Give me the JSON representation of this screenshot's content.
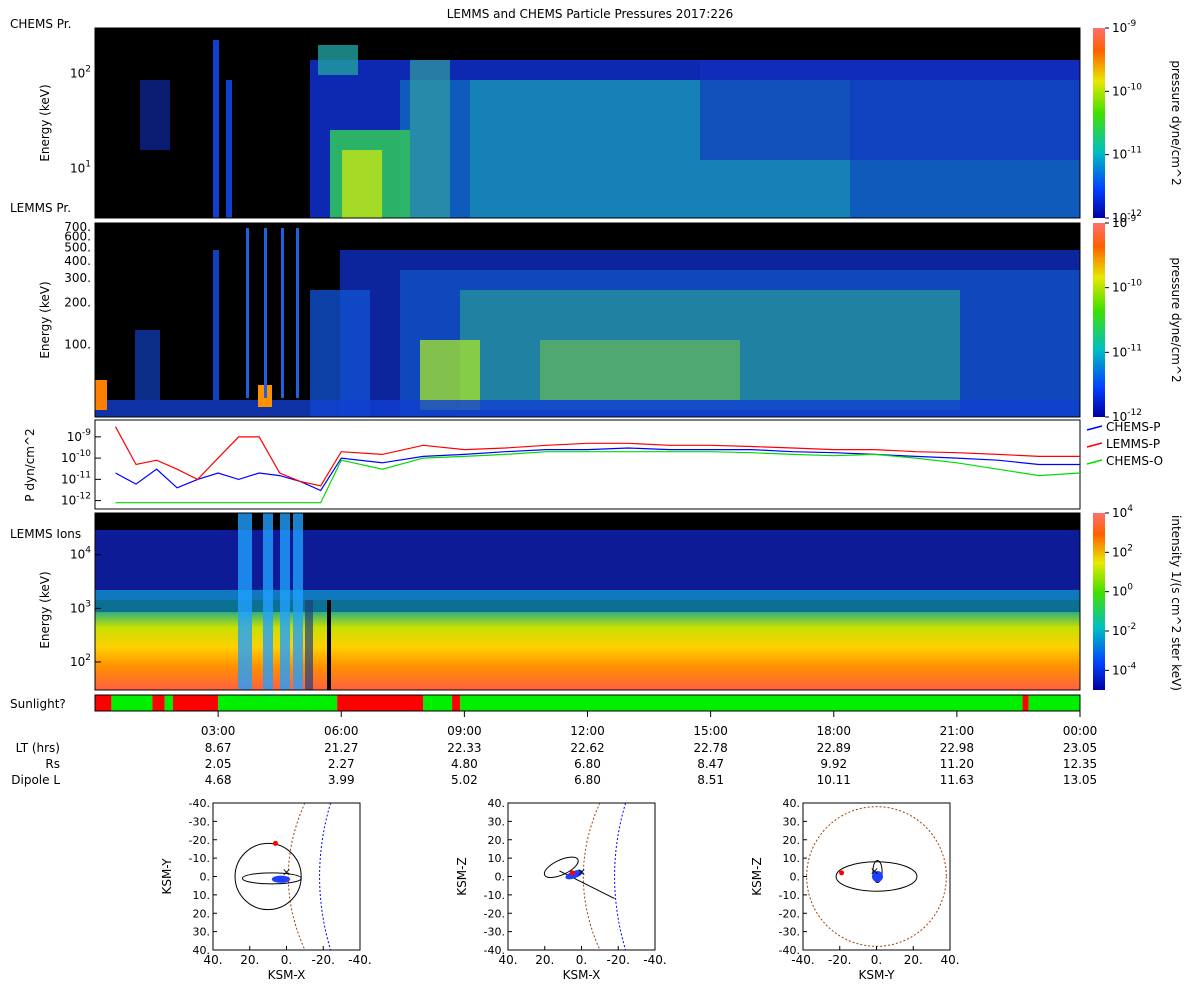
{
  "title": "LEMMS and CHEMS Particle Pressures  2017:226",
  "chart_data": [
    {
      "type": "heatmap",
      "panel": "chems",
      "corner_label": "CHEMS Pr.",
      "ylabel": "Energy (keV)",
      "yscale": "log",
      "ylim": [
        3,
        300
      ],
      "yticks": [
        {
          "v": 10,
          "label": "10",
          "exp": "1"
        },
        {
          "v": 100,
          "label": "10",
          "exp": "2"
        }
      ],
      "colorbar": {
        "label": "pressure dyne/cm^2",
        "scale": "log",
        "range": [
          1e-12,
          1e-09
        ],
        "ticks": [
          {
            "label": "10",
            "exp": "-9"
          },
          {
            "label": "10",
            "exp": "-10"
          },
          {
            "label": "10",
            "exp": "-11"
          },
          {
            "label": "10",
            "exp": "-12"
          }
        ]
      }
    },
    {
      "type": "heatmap",
      "panel": "lemms_pressure",
      "corner_label": "LEMMS Pr.",
      "ylabel": "Energy (keV)",
      "yscale": "log",
      "ylim": [
        30,
        750
      ],
      "yticks": [
        {
          "v": 100,
          "label": "100."
        },
        {
          "v": 200,
          "label": "200."
        },
        {
          "v": 300,
          "label": "300."
        },
        {
          "v": 400,
          "label": "400."
        },
        {
          "v": 500,
          "label": "500."
        },
        {
          "v": 600,
          "label": "600."
        },
        {
          "v": 700,
          "label": "700."
        }
      ],
      "colorbar": {
        "label": "pressure dyne/cm^2",
        "scale": "log",
        "range": [
          1e-12,
          1e-09
        ],
        "ticks": [
          {
            "label": "10",
            "exp": "-9"
          },
          {
            "label": "10",
            "exp": "-10"
          },
          {
            "label": "10",
            "exp": "-11"
          },
          {
            "label": "10",
            "exp": "-12"
          }
        ]
      }
    },
    {
      "type": "line",
      "panel": "pressures",
      "ylabel": "P dyn/cm^2",
      "yscale": "log",
      "ylim": [
        5e-13,
        5e-09
      ],
      "yticks": [
        {
          "label": "10",
          "exp": "-9"
        },
        {
          "label": "10",
          "exp": "-10"
        },
        {
          "label": "10",
          "exp": "-11"
        },
        {
          "label": "10",
          "exp": "-12"
        }
      ],
      "x": [
        0.5,
        1,
        1.5,
        2,
        2.5,
        3,
        3.5,
        4,
        4.5,
        5,
        5.5,
        6,
        7,
        8,
        9,
        10,
        11,
        12,
        13,
        14,
        15,
        16,
        17,
        18,
        19,
        20,
        21,
        22,
        23,
        24
      ],
      "series": [
        {
          "name": "CHEMS-P",
          "color": "#0000ff",
          "values": [
            2e-11,
            6e-12,
            3e-11,
            4e-12,
            1e-11,
            2e-11,
            1e-11,
            2e-11,
            1.5e-11,
            8e-12,
            3e-12,
            1e-10,
            6e-11,
            1.2e-10,
            1.5e-10,
            2e-10,
            2.5e-10,
            2.5e-10,
            3e-10,
            2.5e-10,
            2.5e-10,
            2.5e-10,
            2e-10,
            1.8e-10,
            1.5e-10,
            1.2e-10,
            1e-10,
            8e-11,
            5e-11,
            5e-11
          ]
        },
        {
          "name": "LEMMS-P",
          "color": "#ff0000",
          "values": [
            3e-09,
            5e-11,
            8e-11,
            3e-11,
            1e-11,
            1e-10,
            1e-09,
            1e-09,
            2e-11,
            8e-12,
            5e-12,
            2e-10,
            1.5e-10,
            4e-10,
            2.5e-10,
            3e-10,
            4e-10,
            5e-10,
            5e-10,
            4e-10,
            4e-10,
            3.5e-10,
            3e-10,
            2.5e-10,
            2.5e-10,
            2e-10,
            1.8e-10,
            1.5e-10,
            1.2e-10,
            1.2e-10
          ]
        },
        {
          "name": "CHEMS-O",
          "color": "#00dd00",
          "values": [
            8e-13,
            8e-13,
            8e-13,
            8e-13,
            8e-13,
            8e-13,
            8e-13,
            8e-13,
            8e-13,
            8e-13,
            8e-13,
            8e-11,
            3e-11,
            1e-10,
            1.2e-10,
            1.5e-10,
            2e-10,
            2e-10,
            2e-10,
            2e-10,
            2e-10,
            1.8e-10,
            1.5e-10,
            1.3e-10,
            1.5e-10,
            1e-10,
            6e-11,
            3e-11,
            1.5e-11,
            2e-11
          ]
        }
      ]
    },
    {
      "type": "heatmap",
      "panel": "lemms_ions",
      "corner_label": "LEMMS Ions",
      "ylabel": "Energy (keV)",
      "yscale": "log",
      "ylim": [
        30,
        60000
      ],
      "yticks": [
        {
          "v": 100,
          "label": "10",
          "exp": "2"
        },
        {
          "v": 1000,
          "label": "10",
          "exp": "3"
        },
        {
          "v": 10000,
          "label": "10",
          "exp": "4"
        }
      ],
      "colorbar": {
        "label": "intensity 1/(s cm^2 ster keV)",
        "scale": "log",
        "range": [
          1e-05,
          10000.0
        ],
        "ticks": [
          {
            "label": "10",
            "exp": "4"
          },
          {
            "label": "10",
            "exp": "2"
          },
          {
            "label": "10",
            "exp": "0"
          },
          {
            "label": "10",
            "exp": "-2"
          },
          {
            "label": "10",
            "exp": "-4"
          }
        ]
      }
    },
    {
      "type": "bar",
      "panel": "sunlight",
      "label": "Sunlight?",
      "segments": [
        {
          "from": 0,
          "to": 0.4,
          "state": "dark"
        },
        {
          "from": 0.4,
          "to": 1.4,
          "state": "lit"
        },
        {
          "from": 1.4,
          "to": 1.7,
          "state": "dark"
        },
        {
          "from": 1.7,
          "to": 1.9,
          "state": "lit"
        },
        {
          "from": 1.9,
          "to": 3.0,
          "state": "dark"
        },
        {
          "from": 3.0,
          "to": 5.9,
          "state": "lit"
        },
        {
          "from": 5.9,
          "to": 8.0,
          "state": "dark"
        },
        {
          "from": 8.0,
          "to": 8.7,
          "state": "lit"
        },
        {
          "from": 8.7,
          "to": 8.9,
          "state": "dark"
        },
        {
          "from": 8.9,
          "to": 22.6,
          "state": "lit"
        },
        {
          "from": 22.6,
          "to": 22.75,
          "state": "dark"
        },
        {
          "from": 22.75,
          "to": 24,
          "state": "lit"
        }
      ],
      "colors": {
        "lit": "#00ee00",
        "dark": "#ff0000"
      }
    },
    {
      "type": "scatter",
      "panel": "orbit_xy",
      "xlabel": "KSM-X",
      "ylabel": "KSM-Y",
      "xlim": [
        40,
        -40
      ],
      "ylim": [
        -40,
        40
      ],
      "xticks": [
        "40.",
        "20.",
        "0.",
        "-20.",
        "-40."
      ],
      "yticks": [
        "-40.",
        "-30.",
        "-20.",
        "-10.",
        "0.",
        "10.",
        "20.",
        "30.",
        "40."
      ]
    },
    {
      "type": "scatter",
      "panel": "orbit_xz",
      "xlabel": "KSM-X",
      "ylabel": "KSM-Z",
      "xlim": [
        40,
        -40
      ],
      "ylim": [
        40,
        -40
      ],
      "xticks": [
        "40.",
        "20.",
        "0.",
        "-20.",
        "-40."
      ],
      "yticks": [
        "40.",
        "30.",
        "20.",
        "10.",
        "0.",
        "-10.",
        "-20.",
        "-30.",
        "-40."
      ]
    },
    {
      "type": "scatter",
      "panel": "orbit_yz",
      "xlabel": "KSM-Y",
      "ylabel": "KSM-Z",
      "xlim": [
        -40,
        40
      ],
      "ylim": [
        40,
        -40
      ],
      "xticks": [
        "-40.",
        "-20.",
        "0.",
        "20.",
        "40."
      ],
      "yticks": [
        "40.",
        "30.",
        "20.",
        "10.",
        "0.",
        "-10.",
        "-20.",
        "-30.",
        "-40."
      ]
    }
  ],
  "time_axis": {
    "ticks": [
      "03:00",
      "06:00",
      "09:00",
      "12:00",
      "15:00",
      "18:00",
      "21:00",
      "00:00"
    ],
    "hours": [
      3,
      6,
      9,
      12,
      15,
      18,
      21,
      24
    ],
    "rows": [
      {
        "label": "LT (hrs)",
        "values": [
          "8.67",
          "21.27",
          "22.33",
          "22.62",
          "22.78",
          "22.89",
          "22.98",
          "23.05"
        ]
      },
      {
        "label": "Rs",
        "values": [
          "2.05",
          "2.27",
          "4.80",
          "6.80",
          "8.47",
          "9.92",
          "11.20",
          "12.35"
        ]
      },
      {
        "label": "Dipole L",
        "values": [
          "4.68",
          "3.99",
          "5.02",
          "6.80",
          "8.51",
          "10.11",
          "11.63",
          "13.05"
        ]
      }
    ]
  },
  "legend": [
    "CHEMS-P",
    "LEMMS-P",
    "CHEMS-O"
  ]
}
